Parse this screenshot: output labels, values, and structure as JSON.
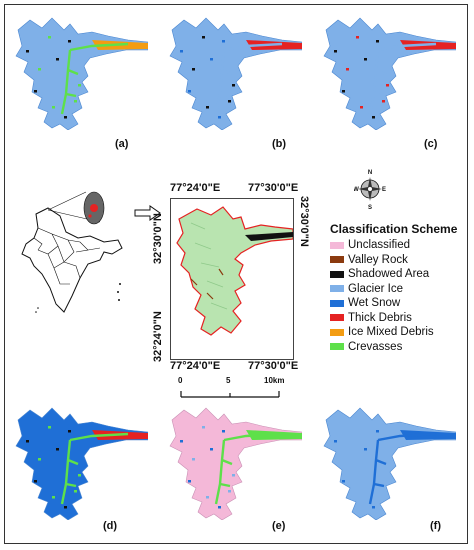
{
  "panels": [
    {
      "label": "(a)",
      "scheme": "a"
    },
    {
      "label": "(b)",
      "scheme": "b"
    },
    {
      "label": "(c)",
      "scheme": "c"
    },
    {
      "label": "(d)",
      "scheme": "d"
    },
    {
      "label": "(e)",
      "scheme": "e"
    },
    {
      "label": "(f)",
      "scheme": "f"
    }
  ],
  "map": {
    "top_left_lon": "77°24'0\"E",
    "top_right_lon": "77°30'0\"E",
    "bottom_left_lon": "77°24'0\"E",
    "bottom_right_lon": "77°30'0\"E",
    "left_top_lat": "32°30'0\"N",
    "left_bottom_lat": "32°24'0\"N",
    "right_top_lat": "32°30'0\"N"
  },
  "scale_bar": {
    "ticks": [
      "0",
      "5",
      "10km"
    ]
  },
  "compass": {
    "n": "N",
    "s": "S",
    "e": "E",
    "w": "W"
  },
  "legend": {
    "title": "Classification Scheme",
    "items": [
      {
        "label": "Unclassified",
        "color": "#f4b8d8"
      },
      {
        "label": "Valley Rock",
        "color": "#8b3a0f"
      },
      {
        "label": "Shadowed Area",
        "color": "#111111"
      },
      {
        "label": "Glacier Ice",
        "color": "#7fb0e8"
      },
      {
        "label": "Wet Snow",
        "color": "#1f6fd6"
      },
      {
        "label": "Thick Debris",
        "color": "#e52222"
      },
      {
        "label": "Ice Mixed Debris",
        "color": "#f39c12"
      },
      {
        "label": "Crevasses",
        "color": "#5ee04a"
      }
    ]
  },
  "colors": {
    "glacier_ice": "#7fb0e8",
    "wet_snow": "#1f6fd6",
    "crevasses": "#5ee04a",
    "thick_debris": "#e52222",
    "ice_mixed_debris": "#f39c12",
    "shadow": "#111111",
    "unclassified": "#f4b8d8",
    "main_fill": "#b9e4b0",
    "outline": "#e52222"
  }
}
